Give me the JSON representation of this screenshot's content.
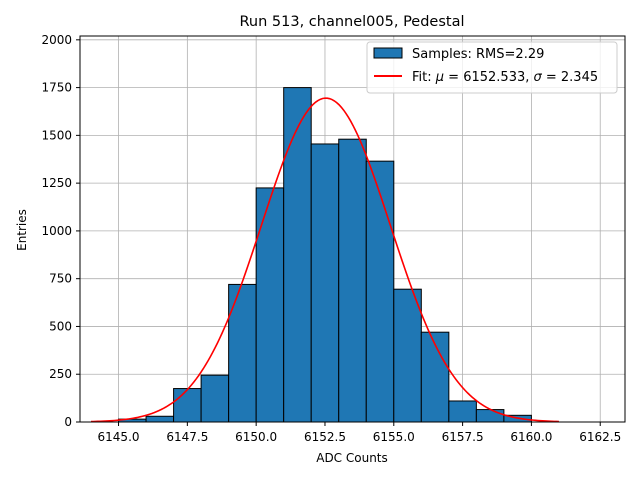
{
  "chart_data": {
    "type": "bar",
    "title": "Run 513, channel005, Pedestal",
    "xlabel": "ADC Counts",
    "ylabel": "Entries",
    "xlim": [
      6143.6,
      6163.4
    ],
    "ylim": [
      0,
      2020
    ],
    "x_ticks": [
      6145.0,
      6147.5,
      6150.0,
      6152.5,
      6155.0,
      6157.5,
      6160.0,
      6162.5
    ],
    "x_tick_labels": [
      "6145.0",
      "6147.5",
      "6150.0",
      "6152.5",
      "6155.0",
      "6157.5",
      "6160.0",
      "6162.5"
    ],
    "y_ticks": [
      0,
      250,
      500,
      750,
      1000,
      1250,
      1500,
      1750,
      2000
    ],
    "y_tick_labels": [
      "0",
      "250",
      "500",
      "750",
      "1000",
      "1250",
      "1500",
      "1750",
      "2000"
    ],
    "grid": true,
    "legend_position": "top-right",
    "histogram": {
      "name": "Samples: RMS=2.29",
      "bin_edges": [
        6145.0,
        6146.0,
        6147.0,
        6148.0,
        6149.0,
        6150.0,
        6151.0,
        6152.0,
        6153.0,
        6154.0,
        6155.0,
        6156.0,
        6157.0,
        6158.0,
        6159.0,
        6160.0
      ],
      "counts": [
        15,
        30,
        175,
        245,
        720,
        1225,
        1750,
        1455,
        1480,
        1365,
        695,
        470,
        110,
        65,
        35
      ],
      "color": "#1f77b4",
      "edge_color": "#000000"
    },
    "fit": {
      "name_prefix": "Fit: ",
      "mu_symbol": "μ",
      "mu_value": " = 6152.533, ",
      "sigma_symbol": "σ",
      "sigma_value": " = 2.345",
      "mu": 6152.533,
      "sigma": 2.345,
      "amplitude": 1695,
      "x_range": [
        6144.0,
        6161.0
      ],
      "color": "#ff0000"
    }
  }
}
